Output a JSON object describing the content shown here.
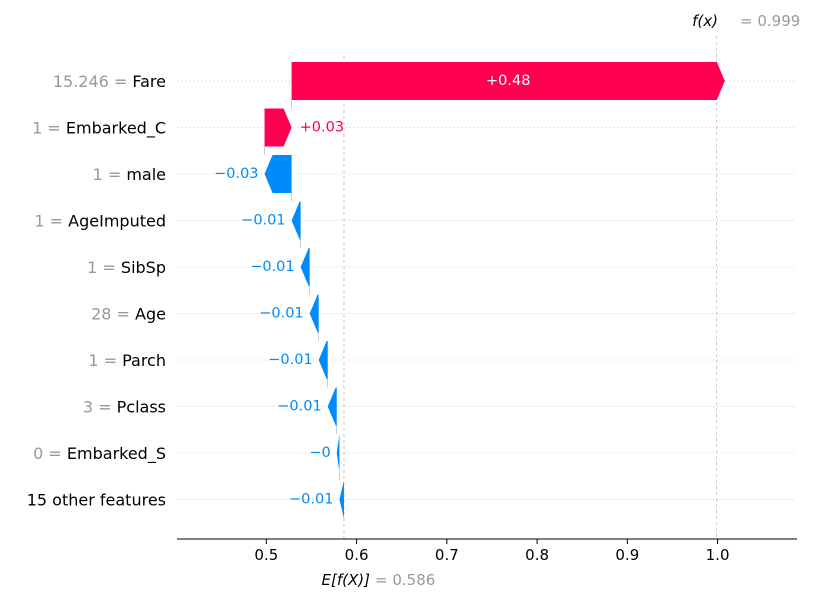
{
  "chart_data": {
    "type": "waterfall",
    "base_value": 0.586,
    "final_value": 0.999,
    "base_label": "E[f(X)]",
    "base_value_text": "= 0.586",
    "final_label": "f(x)",
    "final_value_text": "= 0.999",
    "xlim": [
      0.401,
      1.088
    ],
    "xticks": [
      0.5,
      0.6,
      0.7,
      0.8,
      0.9,
      1.0
    ],
    "xtick_labels": [
      "0.5",
      "0.6",
      "0.7",
      "0.8",
      "0.9",
      "1.0"
    ],
    "features": [
      {
        "value": "15.246",
        "name": "Fare",
        "contribution": 0.48,
        "label": "+0.48"
      },
      {
        "value": "1",
        "name": "Embarked_C",
        "contribution": 0.03,
        "label": "+0.03"
      },
      {
        "value": "1",
        "name": "male",
        "contribution": -0.03,
        "label": "−0.03"
      },
      {
        "value": "1",
        "name": "AgeImputed",
        "contribution": -0.01,
        "label": "−0.01"
      },
      {
        "value": "1",
        "name": "SibSp",
        "contribution": -0.01,
        "label": "−0.01"
      },
      {
        "value": "28",
        "name": "Age",
        "contribution": -0.01,
        "label": "−0.01"
      },
      {
        "value": "1",
        "name": "Parch",
        "contribution": -0.01,
        "label": "−0.01"
      },
      {
        "value": "3",
        "name": "Pclass",
        "contribution": -0.01,
        "label": "−0.01"
      },
      {
        "value": "0",
        "name": "Embarked_S",
        "contribution": -0.003,
        "label": "−0"
      },
      {
        "value": "",
        "name": "15 other features",
        "contribution": -0.005,
        "label": "−0.01"
      }
    ],
    "colors": {
      "positive": "#ff0051",
      "negative": "#008bfb",
      "value_text": "#999999"
    },
    "grid": false
  }
}
